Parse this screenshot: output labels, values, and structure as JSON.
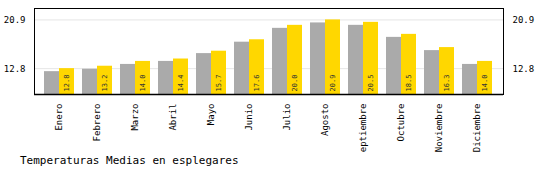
{
  "chart_data": {
    "type": "bar",
    "title": "Temperaturas Medias en esplegares",
    "categories": [
      "Enero",
      "Febrero",
      "Marzo",
      "Abril",
      "Mayo",
      "Junio",
      "Julio",
      "Agosto",
      "Septiembre",
      "Octubre",
      "Noviembre",
      "Diciembre"
    ],
    "series": [
      {
        "color": "#AAAAAA",
        "values": [
          12.3,
          12.7,
          13.5,
          14.0,
          15.3,
          17.2,
          19.5,
          20.4,
          20.0,
          18.0,
          15.8,
          13.5
        ]
      },
      {
        "color": "#FFD700",
        "values": [
          12.8,
          13.2,
          14.0,
          14.4,
          15.7,
          17.6,
          20.0,
          20.9,
          20.5,
          18.5,
          16.3,
          14.0
        ],
        "data_labels": true,
        "value_labels": [
          "12.8",
          "13.2",
          "14.0",
          "14.4",
          "15.7",
          "17.6",
          "20.0",
          "20.9",
          "20.5",
          "18.5",
          "16.3",
          "14.0"
        ]
      }
    ],
    "ylim": [
      8.5,
      22.8
    ],
    "yticks": [
      12.8,
      20.9
    ],
    "grid": true
  }
}
